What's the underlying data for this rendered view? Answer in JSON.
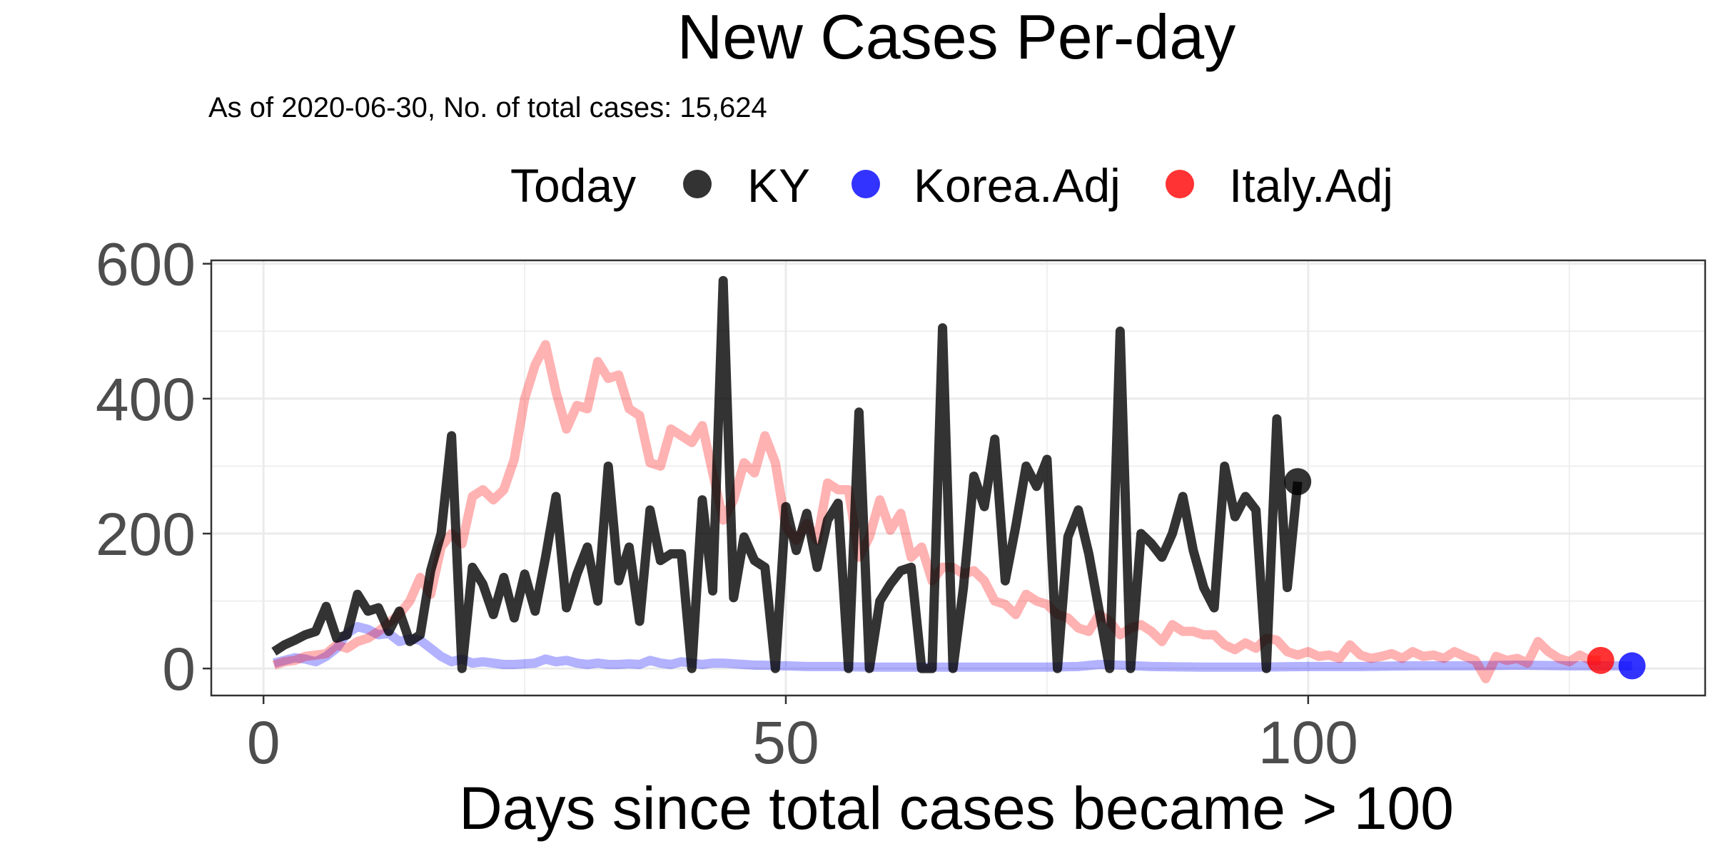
{
  "chart_data": {
    "type": "line",
    "title": "New Cases Per-day",
    "subtitle": "As of 2020-06-30, No. of total cases: 15,624",
    "xlabel": "Days since total cases became > 100",
    "ylabel": "",
    "xlim": [
      -5,
      138
    ],
    "ylim": [
      -40,
      605
    ],
    "x_ticks": [
      0,
      50,
      100
    ],
    "y_ticks": [
      0,
      200,
      400,
      600
    ],
    "x_tick_labels": [
      "0",
      "50",
      "100"
    ],
    "y_tick_labels": [
      "0",
      "200",
      "400",
      "600"
    ],
    "grid": true,
    "legend": {
      "title": "Today",
      "position": "top",
      "entries": [
        "KY",
        "Korea.Adj",
        "Italy.Adj"
      ]
    },
    "series": [
      {
        "name": "Korea.Adj",
        "color": "#0000ff",
        "alpha": 0.3,
        "today_point": [
          131,
          4
        ],
        "points": [
          [
            1,
            8
          ],
          [
            2,
            12
          ],
          [
            3,
            16
          ],
          [
            4,
            14
          ],
          [
            5,
            10
          ],
          [
            6,
            18
          ],
          [
            7,
            30
          ],
          [
            8,
            52
          ],
          [
            9,
            62
          ],
          [
            10,
            58
          ],
          [
            11,
            50
          ],
          [
            12,
            52
          ],
          [
            13,
            40
          ],
          [
            14,
            44
          ],
          [
            15,
            42
          ],
          [
            16,
            30
          ],
          [
            17,
            18
          ],
          [
            18,
            10
          ],
          [
            19,
            14
          ],
          [
            20,
            8
          ],
          [
            21,
            10
          ],
          [
            22,
            8
          ],
          [
            23,
            6
          ],
          [
            24,
            6
          ],
          [
            25,
            7
          ],
          [
            26,
            8
          ],
          [
            27,
            14
          ],
          [
            28,
            10
          ],
          [
            29,
            12
          ],
          [
            30,
            8
          ],
          [
            31,
            6
          ],
          [
            32,
            8
          ],
          [
            33,
            6
          ],
          [
            34,
            6
          ],
          [
            35,
            7
          ],
          [
            36,
            6
          ],
          [
            37,
            12
          ],
          [
            38,
            8
          ],
          [
            39,
            6
          ],
          [
            40,
            10
          ],
          [
            41,
            8
          ],
          [
            42,
            6
          ],
          [
            43,
            8
          ],
          [
            44,
            8
          ],
          [
            45,
            7
          ],
          [
            46,
            6
          ],
          [
            47,
            5
          ],
          [
            48,
            5
          ],
          [
            49,
            4
          ],
          [
            50,
            4
          ],
          [
            52,
            3
          ],
          [
            55,
            3
          ],
          [
            58,
            2
          ],
          [
            60,
            2
          ],
          [
            65,
            2
          ],
          [
            70,
            2
          ],
          [
            75,
            2
          ],
          [
            78,
            3
          ],
          [
            80,
            6
          ],
          [
            82,
            5
          ],
          [
            85,
            3
          ],
          [
            90,
            2
          ],
          [
            95,
            2
          ],
          [
            100,
            3
          ],
          [
            105,
            3
          ],
          [
            110,
            4
          ],
          [
            115,
            4
          ],
          [
            120,
            5
          ],
          [
            125,
            4
          ],
          [
            131,
            4
          ]
        ]
      },
      {
        "name": "Italy.Adj",
        "color": "#ff0000",
        "alpha": 0.3,
        "today_point": [
          128,
          12
        ],
        "points": [
          [
            1,
            5
          ],
          [
            2,
            10
          ],
          [
            3,
            12
          ],
          [
            4,
            18
          ],
          [
            5,
            20
          ],
          [
            6,
            22
          ],
          [
            7,
            35
          ],
          [
            8,
            30
          ],
          [
            9,
            40
          ],
          [
            10,
            45
          ],
          [
            11,
            55
          ],
          [
            12,
            68
          ],
          [
            13,
            80
          ],
          [
            14,
            100
          ],
          [
            15,
            135
          ],
          [
            16,
            110
          ],
          [
            17,
            180
          ],
          [
            18,
            200
          ],
          [
            19,
            185
          ],
          [
            20,
            255
          ],
          [
            21,
            265
          ],
          [
            22,
            250
          ],
          [
            23,
            265
          ],
          [
            24,
            310
          ],
          [
            25,
            400
          ],
          [
            26,
            450
          ],
          [
            27,
            480
          ],
          [
            28,
            410
          ],
          [
            29,
            355
          ],
          [
            30,
            390
          ],
          [
            31,
            385
          ],
          [
            32,
            455
          ],
          [
            33,
            430
          ],
          [
            34,
            435
          ],
          [
            35,
            385
          ],
          [
            36,
            375
          ],
          [
            37,
            305
          ],
          [
            38,
            300
          ],
          [
            39,
            355
          ],
          [
            40,
            345
          ],
          [
            41,
            335
          ],
          [
            42,
            360
          ],
          [
            43,
            290
          ],
          [
            44,
            220
          ],
          [
            45,
            250
          ],
          [
            46,
            305
          ],
          [
            47,
            290
          ],
          [
            48,
            345
          ],
          [
            49,
            305
          ],
          [
            50,
            210
          ],
          [
            51,
            190
          ],
          [
            52,
            215
          ],
          [
            53,
            190
          ],
          [
            54,
            275
          ],
          [
            55,
            265
          ],
          [
            56,
            265
          ],
          [
            57,
            165
          ],
          [
            58,
            195
          ],
          [
            59,
            250
          ],
          [
            60,
            205
          ],
          [
            61,
            230
          ],
          [
            62,
            165
          ],
          [
            63,
            180
          ],
          [
            64,
            130
          ],
          [
            65,
            150
          ],
          [
            66,
            150
          ],
          [
            67,
            140
          ],
          [
            68,
            145
          ],
          [
            69,
            130
          ],
          [
            70,
            100
          ],
          [
            71,
            95
          ],
          [
            72,
            80
          ],
          [
            73,
            110
          ],
          [
            74,
            100
          ],
          [
            75,
            95
          ],
          [
            76,
            80
          ],
          [
            77,
            75
          ],
          [
            78,
            60
          ],
          [
            79,
            55
          ],
          [
            80,
            80
          ],
          [
            81,
            70
          ],
          [
            82,
            50
          ],
          [
            83,
            60
          ],
          [
            84,
            65
          ],
          [
            85,
            55
          ],
          [
            86,
            40
          ],
          [
            87,
            65
          ],
          [
            88,
            55
          ],
          [
            89,
            55
          ],
          [
            90,
            50
          ],
          [
            91,
            50
          ],
          [
            92,
            35
          ],
          [
            93,
            28
          ],
          [
            94,
            38
          ],
          [
            95,
            30
          ],
          [
            96,
            45
          ],
          [
            97,
            42
          ],
          [
            98,
            25
          ],
          [
            99,
            20
          ],
          [
            100,
            25
          ],
          [
            101,
            18
          ],
          [
            102,
            20
          ],
          [
            103,
            15
          ],
          [
            104,
            35
          ],
          [
            105,
            20
          ],
          [
            106,
            15
          ],
          [
            107,
            18
          ],
          [
            108,
            22
          ],
          [
            109,
            15
          ],
          [
            110,
            25
          ],
          [
            111,
            18
          ],
          [
            112,
            20
          ],
          [
            113,
            15
          ],
          [
            114,
            25
          ],
          [
            115,
            18
          ],
          [
            116,
            12
          ],
          [
            117,
            -15
          ],
          [
            118,
            18
          ],
          [
            119,
            12
          ],
          [
            120,
            15
          ],
          [
            121,
            8
          ],
          [
            122,
            40
          ],
          [
            123,
            25
          ],
          [
            124,
            15
          ],
          [
            125,
            10
          ],
          [
            126,
            20
          ],
          [
            127,
            12
          ],
          [
            128,
            12
          ]
        ]
      },
      {
        "name": "KY",
        "color": "#000000",
        "alpha": 0.8,
        "today_point": [
          99,
          277
        ],
        "points": [
          [
            1,
            25
          ],
          [
            2,
            35
          ],
          [
            3,
            42
          ],
          [
            4,
            50
          ],
          [
            5,
            55
          ],
          [
            6,
            92
          ],
          [
            7,
            45
          ],
          [
            8,
            50
          ],
          [
            9,
            110
          ],
          [
            10,
            85
          ],
          [
            11,
            90
          ],
          [
            12,
            55
          ],
          [
            13,
            85
          ],
          [
            14,
            40
          ],
          [
            15,
            50
          ],
          [
            16,
            145
          ],
          [
            17,
            200
          ],
          [
            18,
            345
          ],
          [
            19,
            0
          ],
          [
            20,
            150
          ],
          [
            21,
            125
          ],
          [
            22,
            80
          ],
          [
            23,
            135
          ],
          [
            24,
            75
          ],
          [
            25,
            140
          ],
          [
            26,
            85
          ],
          [
            27,
            165
          ],
          [
            28,
            255
          ],
          [
            29,
            90
          ],
          [
            30,
            140
          ],
          [
            31,
            180
          ],
          [
            32,
            100
          ],
          [
            33,
            300
          ],
          [
            34,
            130
          ],
          [
            35,
            180
          ],
          [
            36,
            70
          ],
          [
            37,
            235
          ],
          [
            38,
            160
          ],
          [
            39,
            170
          ],
          [
            40,
            170
          ],
          [
            41,
            0
          ],
          [
            42,
            250
          ],
          [
            43,
            115
          ],
          [
            44,
            575
          ],
          [
            45,
            105
          ],
          [
            46,
            195
          ],
          [
            47,
            160
          ],
          [
            48,
            150
          ],
          [
            49,
            0
          ],
          [
            50,
            240
          ],
          [
            51,
            175
          ],
          [
            52,
            230
          ],
          [
            53,
            150
          ],
          [
            54,
            220
          ],
          [
            55,
            245
          ],
          [
            56,
            0
          ],
          [
            57,
            380
          ],
          [
            58,
            0
          ],
          [
            59,
            100
          ],
          [
            60,
            125
          ],
          [
            61,
            145
          ],
          [
            62,
            150
          ],
          [
            63,
            0
          ],
          [
            64,
            0
          ],
          [
            65,
            505
          ],
          [
            66,
            0
          ],
          [
            67,
            120
          ],
          [
            68,
            285
          ],
          [
            69,
            240
          ],
          [
            70,
            340
          ],
          [
            71,
            130
          ],
          [
            72,
            210
          ],
          [
            73,
            300
          ],
          [
            74,
            270
          ],
          [
            75,
            310
          ],
          [
            76,
            0
          ],
          [
            77,
            195
          ],
          [
            78,
            235
          ],
          [
            79,
            170
          ],
          [
            80,
            85
          ],
          [
            81,
            0
          ],
          [
            82,
            500
          ],
          [
            83,
            0
          ],
          [
            84,
            200
          ],
          [
            85,
            185
          ],
          [
            86,
            165
          ],
          [
            87,
            200
          ],
          [
            88,
            255
          ],
          [
            89,
            175
          ],
          [
            90,
            120
          ],
          [
            91,
            90
          ],
          [
            92,
            300
          ],
          [
            93,
            225
          ],
          [
            94,
            255
          ],
          [
            95,
            235
          ],
          [
            96,
            0
          ],
          [
            97,
            370
          ],
          [
            98,
            120
          ],
          [
            99,
            277
          ]
        ]
      }
    ]
  }
}
